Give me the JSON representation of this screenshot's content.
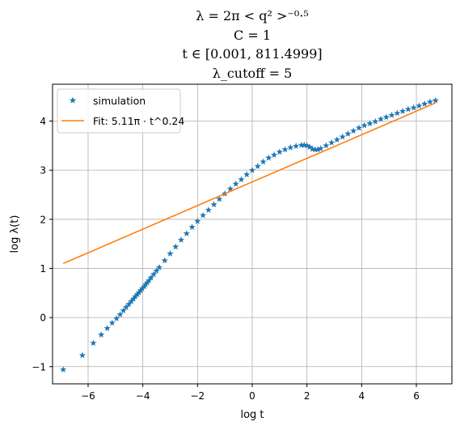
{
  "chart_data": {
    "type": "scatter",
    "title_lines": [
      "λ = 2π < q² >⁻⁰·⁵",
      "C = 1",
      "t ∈ [0.001, 811.4999]",
      "λ_cutoff = 5"
    ],
    "xlabel": "log t",
    "ylabel": "log λ(t)",
    "xlim": [
      -7.3,
      7.3
    ],
    "ylim": [
      -1.35,
      4.75
    ],
    "xticks": [
      -6,
      -4,
      -2,
      0,
      2,
      4,
      6
    ],
    "xtick_labels": [
      "−6",
      "−4",
      "−2",
      "0",
      "2",
      "4",
      "6"
    ],
    "yticks": [
      -1,
      0,
      1,
      2,
      3,
      4
    ],
    "ytick_labels": [
      "−1",
      "0",
      "1",
      "2",
      "3",
      "4"
    ],
    "grid": true,
    "legend_position": "upper-left",
    "series": [
      {
        "name": "simulation",
        "style": "markers",
        "marker": "star",
        "color": "#1f77b4",
        "x": [
          -6.91,
          -6.21,
          -5.81,
          -5.52,
          -5.3,
          -5.12,
          -4.96,
          -4.83,
          -4.71,
          -4.61,
          -4.51,
          -4.42,
          -4.34,
          -4.27,
          -4.2,
          -4.14,
          -4.08,
          -4.02,
          -3.95,
          -3.9,
          -3.84,
          -3.78,
          -3.7,
          -3.6,
          -3.5,
          -3.4,
          -3.2,
          -3.0,
          -2.8,
          -2.6,
          -2.4,
          -2.2,
          -2.0,
          -1.8,
          -1.6,
          -1.4,
          -1.2,
          -1.0,
          -0.8,
          -0.6,
          -0.4,
          -0.2,
          0.0,
          0.2,
          0.4,
          0.6,
          0.8,
          1.0,
          1.2,
          1.4,
          1.6,
          1.8,
          1.9,
          2.0,
          2.1,
          2.2,
          2.3,
          2.4,
          2.5,
          2.7,
          2.9,
          3.1,
          3.3,
          3.5,
          3.7,
          3.9,
          4.1,
          4.3,
          4.5,
          4.7,
          4.9,
          5.1,
          5.3,
          5.5,
          5.7,
          5.9,
          6.1,
          6.3,
          6.5,
          6.7
        ],
        "y": [
          -1.06,
          -0.77,
          -0.52,
          -0.35,
          -0.22,
          -0.11,
          -0.02,
          0.06,
          0.14,
          0.21,
          0.27,
          0.33,
          0.38,
          0.43,
          0.47,
          0.51,
          0.55,
          0.59,
          0.63,
          0.67,
          0.71,
          0.75,
          0.81,
          0.88,
          0.95,
          1.02,
          1.16,
          1.3,
          1.44,
          1.58,
          1.71,
          1.84,
          1.96,
          2.08,
          2.19,
          2.3,
          2.41,
          2.52,
          2.62,
          2.72,
          2.81,
          2.91,
          3.0,
          3.08,
          3.17,
          3.25,
          3.31,
          3.37,
          3.42,
          3.46,
          3.49,
          3.51,
          3.51,
          3.5,
          3.47,
          3.43,
          3.42,
          3.42,
          3.44,
          3.5,
          3.56,
          3.62,
          3.68,
          3.74,
          3.8,
          3.86,
          3.91,
          3.95,
          3.99,
          4.04,
          4.08,
          4.12,
          4.16,
          4.2,
          4.24,
          4.27,
          4.31,
          4.35,
          4.39,
          4.42
        ]
      },
      {
        "name": "Fit: 5.11π · t^0.24",
        "style": "line",
        "color": "#ff7f0e",
        "x": [
          -6.91,
          6.7
        ],
        "y": [
          1.1,
          4.37
        ]
      }
    ]
  }
}
